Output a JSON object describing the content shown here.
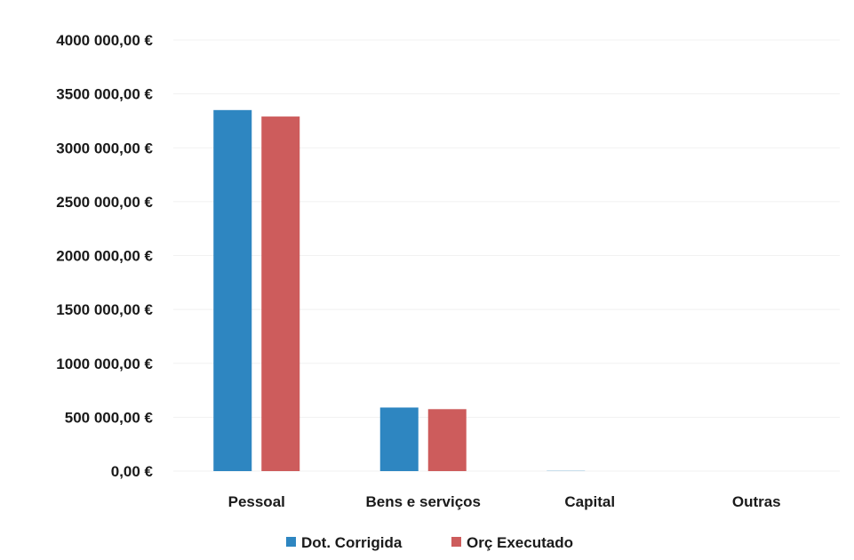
{
  "chart_data": {
    "type": "bar",
    "categories": [
      "Pessoal",
      "Bens e serviços",
      "Capital",
      "Outras"
    ],
    "series": [
      {
        "name": "Dot. Corrigida",
        "color": "#2e86c1",
        "values": [
          3350000,
          590000,
          2000,
          0
        ]
      },
      {
        "name": "Orç Executado",
        "color": "#cd5c5c",
        "values": [
          3290000,
          575000,
          0,
          0
        ]
      }
    ],
    "y_ticks": [
      "0,00 €",
      "500 000,00 €",
      "1000 000,00 €",
      "1500 000,00 €",
      "2000 000,00 €",
      "2500 000,00 €",
      "3000 000,00 €",
      "3500 000,00 €",
      "4000 000,00 €"
    ],
    "ylim": [
      0,
      4000000
    ],
    "grid": true,
    "legend_position": "bottom"
  }
}
